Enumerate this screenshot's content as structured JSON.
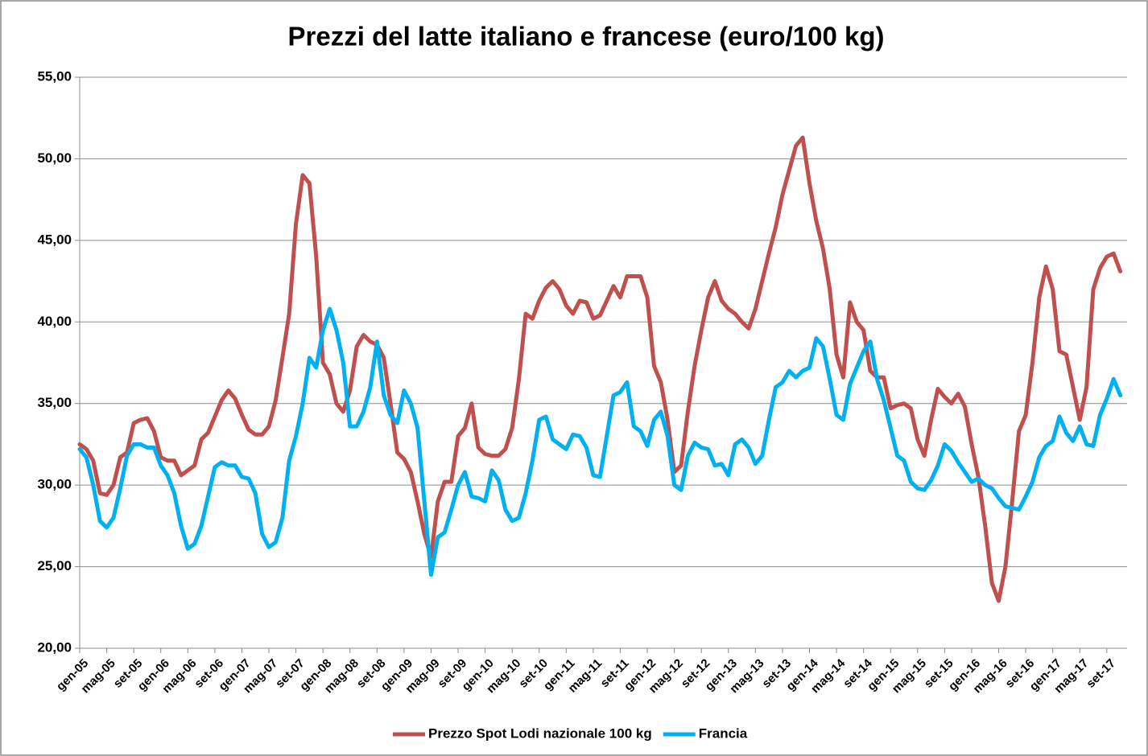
{
  "chart_data": {
    "type": "line",
    "title": "Prezzi del latte italiano e francese (euro/100 kg)",
    "categories": [
      "gen-05",
      null,
      null,
      null,
      "mag-05",
      null,
      null,
      null,
      "set-05",
      null,
      null,
      null,
      "gen-06",
      null,
      null,
      null,
      "mag-06",
      null,
      null,
      null,
      "set-06",
      null,
      null,
      null,
      "gen-07",
      null,
      null,
      null,
      "mag-07",
      null,
      null,
      null,
      "set-07",
      null,
      null,
      null,
      "gen-08",
      null,
      null,
      null,
      "mag-08",
      null,
      null,
      null,
      "set-08",
      null,
      null,
      null,
      "gen-09",
      null,
      null,
      null,
      "mag-09",
      null,
      null,
      null,
      "set-09",
      null,
      null,
      null,
      "gen-10",
      null,
      null,
      null,
      "mag-10",
      null,
      null,
      null,
      "set-10",
      null,
      null,
      null,
      "gen-11",
      null,
      null,
      null,
      "mag-11",
      null,
      null,
      null,
      "set-11",
      null,
      null,
      null,
      "gen-12",
      null,
      null,
      null,
      "mag-12",
      null,
      null,
      null,
      "set-12",
      null,
      null,
      null,
      "gen-13",
      null,
      null,
      null,
      "mag-13",
      null,
      null,
      null,
      "set-13",
      null,
      null,
      null,
      "gen-14",
      null,
      null,
      null,
      "mag-14",
      null,
      null,
      null,
      "set-14",
      null,
      null,
      null,
      "gen-15",
      null,
      null,
      null,
      "mag-15",
      null,
      null,
      null,
      "set-15",
      null,
      null,
      null,
      "gen-16",
      null,
      null,
      null,
      "mag-16",
      null,
      null,
      null,
      "set-16",
      null,
      null,
      null,
      "gen-17",
      null,
      null,
      null,
      "mag-17",
      null,
      null,
      null,
      "set-17",
      null,
      null
    ],
    "series": [
      {
        "name": "Prezzo Spot Lodi nazionale 100 kg",
        "color": "#c0504d",
        "values": [
          32.5,
          32.2,
          31.5,
          29.5,
          29.4,
          30.0,
          31.7,
          32.0,
          33.8,
          34.0,
          34.1,
          33.3,
          31.7,
          31.5,
          31.5,
          30.6,
          30.9,
          31.2,
          32.8,
          33.2,
          34.2,
          35.2,
          35.8,
          35.3,
          34.3,
          33.4,
          33.1,
          33.1,
          33.6,
          35.2,
          37.8,
          40.5,
          46.0,
          49.0,
          48.5,
          44.0,
          37.5,
          36.8,
          35.0,
          34.5,
          35.8,
          38.5,
          39.2,
          38.8,
          38.6,
          37.8,
          35.0,
          32.0,
          31.6,
          30.8,
          29.0,
          27.0,
          25.6,
          29.0,
          30.2,
          30.2,
          33.0,
          33.5,
          35.0,
          32.3,
          31.9,
          31.8,
          31.8,
          32.2,
          33.5,
          36.5,
          40.5,
          40.2,
          41.3,
          42.1,
          42.5,
          42.0,
          41.0,
          40.5,
          41.3,
          41.2,
          40.2,
          40.4,
          41.3,
          42.2,
          41.5,
          42.8,
          42.8,
          42.8,
          41.5,
          37.3,
          36.3,
          34.0,
          30.8,
          31.2,
          34.5,
          37.3,
          39.5,
          41.5,
          42.5,
          41.3,
          40.8,
          40.5,
          40.0,
          39.6,
          40.8,
          42.5,
          44.2,
          45.8,
          47.8,
          49.3,
          50.8,
          51.3,
          48.5,
          46.2,
          44.5,
          42.0,
          38.0,
          36.6,
          41.2,
          40.0,
          39.5,
          37.0,
          36.6,
          36.6,
          34.7,
          34.9,
          35.0,
          34.7,
          32.8,
          31.8,
          34.0,
          35.9,
          35.4,
          35.0,
          35.6,
          34.8,
          32.5,
          30.5,
          27.5,
          24.0,
          22.9,
          25.0,
          29.0,
          33.3,
          34.3,
          37.5,
          41.5,
          43.4,
          42.0,
          38.2,
          38.0,
          36.0,
          34.0,
          36.0,
          42.0,
          43.3,
          44.0,
          44.2,
          43.1
        ]
      },
      {
        "name": "Francia",
        "color": "#00b0f0",
        "values": [
          32.2,
          31.7,
          30.0,
          27.8,
          27.4,
          28.0,
          29.8,
          31.8,
          32.5,
          32.5,
          32.3,
          32.3,
          31.2,
          30.6,
          29.5,
          27.5,
          26.1,
          26.4,
          27.5,
          29.3,
          31.1,
          31.4,
          31.2,
          31.2,
          30.5,
          30.4,
          29.5,
          27.0,
          26.2,
          26.5,
          28.0,
          31.5,
          33.0,
          35.0,
          37.8,
          37.2,
          39.5,
          40.8,
          39.5,
          37.5,
          33.6,
          33.6,
          34.5,
          36.0,
          38.8,
          35.5,
          34.3,
          33.8,
          35.8,
          35.0,
          33.5,
          29.0,
          24.5,
          26.8,
          27.1,
          28.5,
          30.0,
          30.8,
          29.3,
          29.2,
          29.0,
          30.9,
          30.3,
          28.5,
          27.8,
          28.0,
          29.5,
          31.5,
          34.0,
          34.2,
          32.8,
          32.5,
          32.2,
          33.1,
          33.0,
          32.3,
          30.6,
          30.5,
          33.0,
          35.5,
          35.7,
          36.3,
          33.6,
          33.3,
          32.4,
          34.0,
          34.5,
          33.0,
          30.0,
          29.7,
          31.8,
          32.6,
          32.3,
          32.2,
          31.2,
          31.3,
          30.6,
          32.5,
          32.8,
          32.3,
          31.3,
          31.8,
          34.0,
          36.0,
          36.3,
          37.0,
          36.6,
          37.0,
          37.2,
          39.0,
          38.5,
          36.5,
          34.3,
          34.0,
          36.2,
          37.2,
          38.2,
          38.8,
          36.5,
          35.2,
          33.5,
          31.8,
          31.5,
          30.2,
          29.8,
          29.7,
          30.3,
          31.2,
          32.5,
          32.1,
          31.4,
          30.8,
          30.2,
          30.4,
          30.0,
          29.8,
          29.2,
          28.7,
          28.6,
          28.5,
          29.3,
          30.2,
          31.7,
          32.4,
          32.7,
          34.2,
          33.2,
          32.7,
          33.6,
          32.5,
          32.4,
          34.3,
          35.3,
          36.5,
          35.5
        ]
      }
    ],
    "ylim": [
      20,
      55
    ],
    "yticks": [
      {
        "value": 20,
        "label": "20,00"
      },
      {
        "value": 25,
        "label": "25,00"
      },
      {
        "value": 30,
        "label": "30,00"
      },
      {
        "value": 35,
        "label": "35,00"
      },
      {
        "value": 40,
        "label": "40,00"
      },
      {
        "value": 45,
        "label": "45,00"
      },
      {
        "value": 50,
        "label": "50,00"
      },
      {
        "value": 55,
        "label": "55,00"
      }
    ],
    "grid": true,
    "legend": "bottom"
  }
}
